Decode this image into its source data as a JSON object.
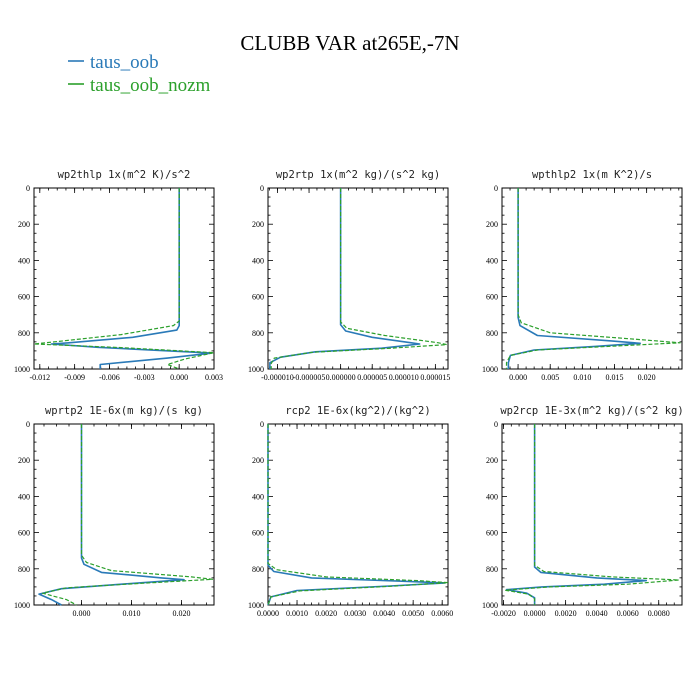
{
  "figure": {
    "title": "CLUBB VAR at265E,-7N",
    "legend": [
      {
        "label": "taus_oob",
        "color": "#2a7ab8",
        "dash": "solid"
      },
      {
        "label": "taus_oob_nozm",
        "color": "#2ca02c",
        "dash": "dashed"
      }
    ]
  },
  "chart_data": [
    {
      "type": "line",
      "title": "wp2thlp  1x(m^2 K)/s^2",
      "xlim": [
        -0.0125,
        0.003
      ],
      "ylim": [
        1000,
        0
      ],
      "xticks": [
        -0.012,
        -0.009,
        -0.006,
        -0.003,
        0.0,
        0.003
      ],
      "xtick_labels": [
        "-0.012",
        "-0.009",
        "-0.006",
        "-0.003",
        "0.000",
        "0.003"
      ],
      "yticks": [
        0,
        200,
        400,
        600,
        800,
        1000
      ],
      "ytick_labels": [
        "0",
        "200",
        "400",
        "600",
        "800",
        "1000"
      ],
      "series": [
        {
          "name": "taus_oob",
          "points": [
            [
              0,
              0
            ],
            [
              0,
              760
            ],
            [
              -0.0002,
              785
            ],
            [
              -0.004,
              825
            ],
            [
              -0.0095,
              855
            ],
            [
              -0.011,
              862
            ],
            [
              -0.007,
              880
            ],
            [
              0.0028,
              912
            ],
            [
              -0.001,
              940
            ],
            [
              -0.0068,
              975
            ],
            [
              -0.0068,
              1000
            ]
          ]
        },
        {
          "name": "taus_oob_nozm",
          "points": [
            [
              0,
              0
            ],
            [
              0,
              735
            ],
            [
              -0.0005,
              760
            ],
            [
              -0.005,
              810
            ],
            [
              -0.0115,
              855
            ],
            [
              -0.0125,
              862
            ],
            [
              -0.005,
              882
            ],
            [
              0.003,
              910
            ],
            [
              0.0005,
              945
            ],
            [
              -0.001,
              975
            ],
            [
              0,
              1000
            ]
          ]
        }
      ]
    },
    {
      "type": "line",
      "title": "wp2rtp  1x(m^2 kg)/(s^2 kg)",
      "xlim": [
        -1.15e-05,
        1.7e-05
      ],
      "ylim": [
        1000,
        0
      ],
      "xticks": [
        -1e-05,
        -5e-06,
        0.0,
        5e-06,
        1e-05,
        1.5e-05
      ],
      "xtick_labels": [
        "-0.000010",
        "-0.000005",
        "0.000000",
        "0.000005",
        "0.000010",
        "0.000015"
      ],
      "yticks": [
        0,
        200,
        400,
        600,
        800,
        1000
      ],
      "ytick_labels": [
        "0",
        "200",
        "400",
        "600",
        "800",
        "1000"
      ],
      "series": [
        {
          "name": "taus_oob",
          "points": [
            [
              0,
              0
            ],
            [
              0,
              755
            ],
            [
              8e-07,
              790
            ],
            [
              5e-06,
              825
            ],
            [
              1.12e-05,
              855
            ],
            [
              1.25e-05,
              862
            ],
            [
              6.5e-06,
              885
            ],
            [
              -4e-06,
              905
            ],
            [
              -9.5e-06,
              935
            ],
            [
              -1.12e-05,
              965
            ],
            [
              -1.12e-05,
              1000
            ]
          ]
        },
        {
          "name": "taus_oob_nozm",
          "points": [
            [
              0,
              0
            ],
            [
              0,
              740
            ],
            [
              1e-06,
              775
            ],
            [
              7e-06,
              815
            ],
            [
              1.55e-05,
              855
            ],
            [
              1.68e-05,
              865
            ],
            [
              8e-06,
              885
            ],
            [
              -4.5e-06,
              908
            ],
            [
              -1.05e-05,
              940
            ],
            [
              -1.1e-05,
              970
            ],
            [
              -1.1e-05,
              1000
            ]
          ]
        }
      ]
    },
    {
      "type": "line",
      "title": "wpthlp2  1x(m K^2)/s",
      "xlim": [
        -0.0025,
        0.0255
      ],
      "ylim": [
        1000,
        0
      ],
      "xticks": [
        0.0,
        0.005,
        0.01,
        0.015,
        0.02
      ],
      "xtick_labels": [
        "0.000",
        "0.005",
        "0.010",
        "0.015",
        "0.020"
      ],
      "yticks": [
        0,
        200,
        400,
        600,
        800,
        1000
      ],
      "ytick_labels": [
        "0",
        "200",
        "400",
        "600",
        "800",
        "1000"
      ],
      "series": [
        {
          "name": "taus_oob",
          "points": [
            [
              0,
              0
            ],
            [
              0,
              715
            ],
            [
              0.0003,
              760
            ],
            [
              0.003,
              815
            ],
            [
              0.0145,
              845
            ],
            [
              0.019,
              858
            ],
            [
              0.012,
              875
            ],
            [
              0.0025,
              895
            ],
            [
              -0.0012,
              925
            ],
            [
              -0.0015,
              965
            ],
            [
              -0.0015,
              1000
            ]
          ]
        },
        {
          "name": "taus_oob_nozm",
          "points": [
            [
              0,
              0
            ],
            [
              0,
              700
            ],
            [
              0.0005,
              745
            ],
            [
              0.005,
              800
            ],
            [
              0.018,
              835
            ],
            [
              0.0252,
              855
            ],
            [
              0.014,
              875
            ],
            [
              0.003,
              895
            ],
            [
              -0.0012,
              925
            ],
            [
              -0.0018,
              965
            ],
            [
              -0.0018,
              1000
            ]
          ]
        }
      ]
    },
    {
      "type": "line",
      "title": "wprtp2  1E-6x(m kg)/(s kg)",
      "xlim": [
        -0.0095,
        0.0265
      ],
      "ylim": [
        1000,
        0
      ],
      "xticks": [
        0.0,
        0.01,
        0.02
      ],
      "xtick_labels": [
        "0.000",
        "0.010",
        "0.020"
      ],
      "yticks": [
        0,
        200,
        400,
        600,
        800,
        1000
      ],
      "ytick_labels": [
        "0",
        "200",
        "400",
        "600",
        "800",
        "1000"
      ],
      "series": [
        {
          "name": "taus_oob",
          "points": [
            [
              0,
              0
            ],
            [
              0,
              740
            ],
            [
              0.0005,
              775
            ],
            [
              0.004,
              820
            ],
            [
              0.016,
              850
            ],
            [
              0.0205,
              860
            ],
            [
              0.008,
              885
            ],
            [
              -0.004,
              910
            ],
            [
              -0.0085,
              940
            ],
            [
              -0.006,
              970
            ],
            [
              -0.004,
              1000
            ]
          ]
        },
        {
          "name": "taus_oob_nozm",
          "points": [
            [
              0,
              0
            ],
            [
              0,
              725
            ],
            [
              0.001,
              765
            ],
            [
              0.006,
              810
            ],
            [
              0.022,
              845
            ],
            [
              0.0262,
              858
            ],
            [
              0.012,
              880
            ],
            [
              -0.003,
              905
            ],
            [
              -0.0078,
              935
            ],
            [
              -0.003,
              970
            ],
            [
              -0.001,
              1000
            ]
          ]
        }
      ]
    },
    {
      "type": "line",
      "title": "rcp2  1E-6x(kg^2)/(kg^2)",
      "xlim": [
        0.0,
        0.0062
      ],
      "ylim": [
        1000,
        0
      ],
      "xticks": [
        0.0,
        0.001,
        0.002,
        0.003,
        0.004,
        0.005,
        0.006
      ],
      "xtick_labels": [
        "0.0000",
        "0.0010",
        "0.0020",
        "0.0030",
        "0.0040",
        "0.0050",
        "0.0060"
      ],
      "yticks": [
        0,
        200,
        400,
        600,
        800,
        1000
      ],
      "ytick_labels": [
        "0",
        "200",
        "400",
        "600",
        "800",
        "1000"
      ],
      "series": [
        {
          "name": "taus_oob",
          "points": [
            [
              0,
              0
            ],
            [
              0,
              780
            ],
            [
              0.0002,
              815
            ],
            [
              0.0015,
              850
            ],
            [
              0.0045,
              868
            ],
            [
              0.0061,
              878
            ],
            [
              0.0042,
              895
            ],
            [
              0.001,
              920
            ],
            [
              0.0001,
              955
            ],
            [
              0,
              1000
            ]
          ]
        },
        {
          "name": "taus_oob_nozm",
          "points": [
            [
              0,
              0
            ],
            [
              0,
              770
            ],
            [
              0.0003,
              805
            ],
            [
              0.002,
              845
            ],
            [
              0.0052,
              866
            ],
            [
              0.0062,
              876
            ],
            [
              0.0044,
              895
            ],
            [
              0.0011,
              922
            ],
            [
              0.0001,
              955
            ],
            [
              0,
              1000
            ]
          ]
        }
      ]
    },
    {
      "type": "line",
      "title": "wp2rcp  1E-3x(m^2 kg)/(s^2 kg)",
      "xlim": [
        -0.0021,
        0.0095
      ],
      "ylim": [
        1000,
        0
      ],
      "xticks": [
        -0.002,
        0.0,
        0.002,
        0.004,
        0.006,
        0.008
      ],
      "xtick_labels": [
        "-0.0020",
        "0.0000",
        "0.0020",
        "0.0040",
        "0.0060",
        "0.0080"
      ],
      "yticks": [
        0,
        200,
        400,
        600,
        800,
        1000
      ],
      "ytick_labels": [
        "0",
        "200",
        "400",
        "600",
        "800",
        "1000"
      ],
      "series": [
        {
          "name": "taus_oob",
          "points": [
            [
              0,
              0
            ],
            [
              0,
              790
            ],
            [
              0.0004,
              820
            ],
            [
              0.004,
              850
            ],
            [
              0.0072,
              865
            ],
            [
              0.0045,
              885
            ],
            [
              0.0005,
              900
            ],
            [
              -0.0018,
              915
            ],
            [
              -0.0005,
              935
            ],
            [
              0,
              960
            ],
            [
              0,
              1000
            ]
          ]
        },
        {
          "name": "taus_oob_nozm",
          "points": [
            [
              0,
              0
            ],
            [
              0,
              780
            ],
            [
              0.0006,
              815
            ],
            [
              0.005,
              845
            ],
            [
              0.0093,
              862
            ],
            [
              0.006,
              885
            ],
            [
              0.001,
              900
            ],
            [
              -0.0019,
              918
            ],
            [
              -0.0004,
              940
            ],
            [
              0,
              965
            ],
            [
              0,
              1000
            ]
          ]
        }
      ]
    }
  ]
}
